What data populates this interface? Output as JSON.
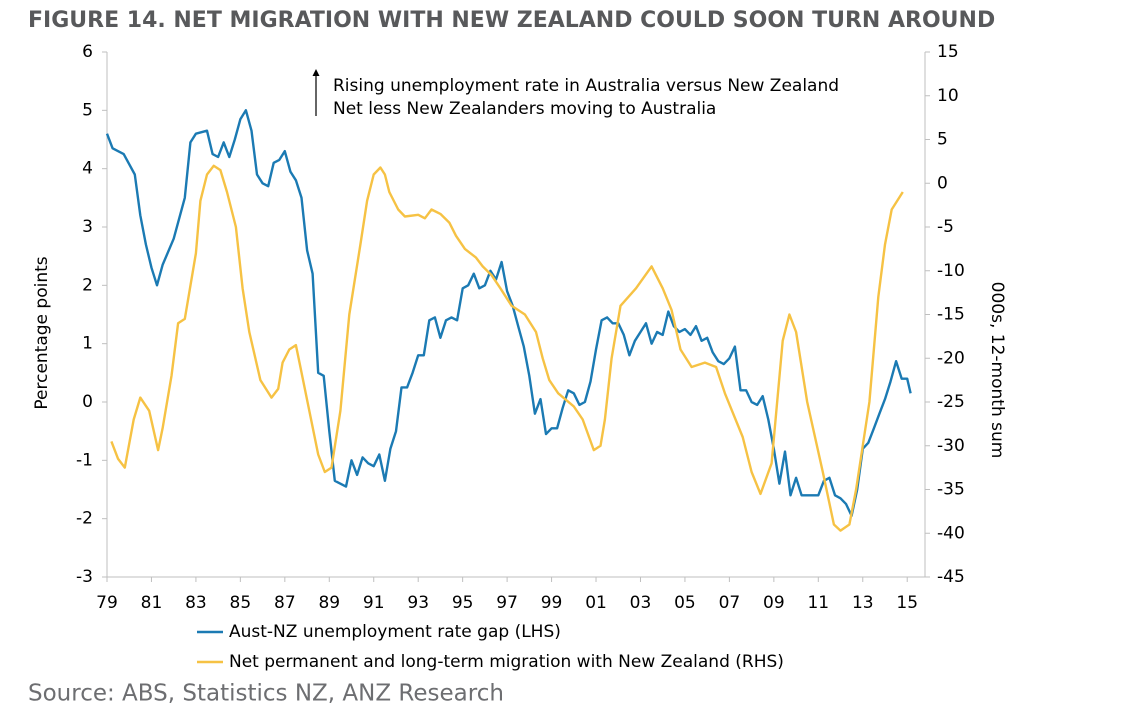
{
  "chart_data": {
    "type": "line",
    "title": "FIGURE 14. NET MIGRATION WITH NEW ZEALAND COULD SOON TURN AROUND",
    "ylabel": "Percentage points",
    "y2label": "000s, 12-month sum",
    "annotation": [
      "Rising unemployment rate in Australia versus New Zealand",
      "Net less New Zealanders moving to Australia"
    ],
    "source": "Source: ABS, Statistics NZ, ANZ Research",
    "xlim": [
      1979,
      2015.8
    ],
    "xticks": [
      {
        "value": 1979,
        "label": "79"
      },
      {
        "value": 1981,
        "label": "81"
      },
      {
        "value": 1983,
        "label": "83"
      },
      {
        "value": 1985,
        "label": "85"
      },
      {
        "value": 1987,
        "label": "87"
      },
      {
        "value": 1989,
        "label": "89"
      },
      {
        "value": 1991,
        "label": "91"
      },
      {
        "value": 1993,
        "label": "93"
      },
      {
        "value": 1995,
        "label": "95"
      },
      {
        "value": 1997,
        "label": "97"
      },
      {
        "value": 1999,
        "label": "99"
      },
      {
        "value": 2001,
        "label": "01"
      },
      {
        "value": 2003,
        "label": "03"
      },
      {
        "value": 2005,
        "label": "05"
      },
      {
        "value": 2007,
        "label": "07"
      },
      {
        "value": 2009,
        "label": "09"
      },
      {
        "value": 2011,
        "label": "11"
      },
      {
        "value": 2013,
        "label": "13"
      },
      {
        "value": 2015,
        "label": "15"
      }
    ],
    "ylim": [
      -3,
      6
    ],
    "yticks": [
      -3,
      -2,
      -1,
      0,
      1,
      2,
      3,
      4,
      5,
      6
    ],
    "y2lim": [
      -45,
      15
    ],
    "y2ticks": [
      -45,
      -40,
      -35,
      -30,
      -25,
      -20,
      -15,
      -10,
      -5,
      0,
      5,
      10,
      15
    ],
    "series": [
      {
        "name": "Aust-NZ unemployment rate gap (LHS)",
        "color": "#1b7ab3",
        "x": [
          1979.0,
          1979.25,
          1979.75,
          1980.25,
          1980.5,
          1980.75,
          1981.0,
          1981.25,
          1981.5,
          1982.0,
          1982.5,
          1982.75,
          1983.0,
          1983.5,
          1983.75,
          1984.0,
          1984.25,
          1984.5,
          1984.75,
          1985.0,
          1985.25,
          1985.5,
          1985.75,
          1986.0,
          1986.25,
          1986.5,
          1986.75,
          1987.0,
          1987.25,
          1987.5,
          1987.75,
          1988.0,
          1988.25,
          1988.5,
          1988.75,
          1989.0,
          1989.25,
          1989.75,
          1990.0,
          1990.25,
          1990.5,
          1990.75,
          1991.0,
          1991.25,
          1991.5,
          1991.75,
          1992.0,
          1992.25,
          1992.5,
          1992.75,
          1993.0,
          1993.25,
          1993.5,
          1993.75,
          1994.0,
          1994.25,
          1994.5,
          1994.75,
          1995.0,
          1995.25,
          1995.5,
          1995.75,
          1996.0,
          1996.25,
          1996.5,
          1996.75,
          1997.0,
          1997.25,
          1997.5,
          1997.75,
          1998.0,
          1998.25,
          1998.5,
          1998.75,
          1999.0,
          1999.25,
          1999.5,
          1999.75,
          2000.0,
          2000.25,
          2000.5,
          2000.75,
          2001.0,
          2001.25,
          2001.5,
          2001.75,
          2002.0,
          2002.25,
          2002.5,
          2002.75,
          2003.0,
          2003.25,
          2003.5,
          2003.75,
          2004.0,
          2004.25,
          2004.5,
          2004.75,
          2005.0,
          2005.25,
          2005.5,
          2005.75,
          2006.0,
          2006.25,
          2006.5,
          2006.75,
          2007.0,
          2007.25,
          2007.5,
          2007.75,
          2008.0,
          2008.25,
          2008.5,
          2008.75,
          2009.0,
          2009.25,
          2009.5,
          2009.75,
          2010.0,
          2010.25,
          2010.75,
          2011.0,
          2011.25,
          2011.5,
          2011.75,
          2012.0,
          2012.25,
          2012.5,
          2012.75,
          2013.0,
          2013.25,
          2013.5,
          2013.75,
          2014.0,
          2014.25,
          2014.5,
          2014.75,
          2015.0,
          2015.15
        ],
        "values": [
          4.6,
          4.35,
          4.25,
          3.9,
          3.2,
          2.7,
          2.3,
          2.0,
          2.35,
          2.8,
          3.5,
          4.45,
          4.6,
          4.65,
          4.25,
          4.2,
          4.45,
          4.2,
          4.5,
          4.85,
          5.0,
          4.65,
          3.9,
          3.75,
          3.7,
          4.1,
          4.15,
          4.3,
          3.95,
          3.8,
          3.5,
          2.6,
          2.2,
          0.5,
          0.45,
          -0.5,
          -1.35,
          -1.45,
          -1.0,
          -1.25,
          -0.95,
          -1.05,
          -1.1,
          -0.9,
          -1.35,
          -0.8,
          -0.5,
          0.25,
          0.25,
          0.5,
          0.8,
          0.8,
          1.4,
          1.45,
          1.1,
          1.4,
          1.45,
          1.4,
          1.95,
          2.0,
          2.2,
          1.95,
          2.0,
          2.25,
          2.1,
          2.4,
          1.9,
          1.65,
          1.3,
          0.95,
          0.45,
          -0.2,
          0.05,
          -0.55,
          -0.45,
          -0.45,
          -0.1,
          0.2,
          0.15,
          -0.05,
          0.0,
          0.35,
          0.9,
          1.4,
          1.45,
          1.35,
          1.35,
          1.15,
          0.8,
          1.05,
          1.2,
          1.35,
          1.0,
          1.2,
          1.15,
          1.55,
          1.3,
          1.2,
          1.25,
          1.15,
          1.3,
          1.05,
          1.1,
          0.85,
          0.7,
          0.65,
          0.75,
          0.95,
          0.2,
          0.2,
          0.0,
          -0.05,
          0.1,
          -0.3,
          -0.8,
          -1.4,
          -0.85,
          -1.6,
          -1.3,
          -1.6,
          -1.6,
          -1.6,
          -1.35,
          -1.3,
          -1.6,
          -1.65,
          -1.75,
          -1.95,
          -1.5,
          -0.8,
          -0.7,
          -0.45,
          -0.2,
          0.05,
          0.35,
          0.7,
          0.4,
          0.4,
          0.15
        ]
      },
      {
        "name": "Net permanent and long-term migration with New Zealand (RHS)",
        "color": "#f6c244",
        "axis": "y2",
        "x": [
          1979.2,
          1979.5,
          1979.8,
          1980.2,
          1980.5,
          1980.9,
          1981.3,
          1981.5,
          1981.9,
          1982.2,
          1982.5,
          1983.0,
          1983.2,
          1983.5,
          1983.8,
          1984.1,
          1984.4,
          1984.8,
          1985.1,
          1985.4,
          1985.9,
          1986.4,
          1986.7,
          1986.9,
          1987.2,
          1987.5,
          1987.7,
          1988.1,
          1988.5,
          1988.8,
          1989.1,
          1989.5,
          1989.9,
          1990.4,
          1990.7,
          1991.0,
          1991.3,
          1991.5,
          1991.7,
          1992.1,
          1992.4,
          1993.0,
          1993.3,
          1993.6,
          1994.0,
          1994.4,
          1994.7,
          1995.1,
          1995.6,
          1995.9,
          1996.3,
          1996.7,
          1997.2,
          1997.8,
          1998.3,
          1998.6,
          1998.9,
          1999.3,
          2000.0,
          2000.4,
          2000.9,
          2001.2,
          2001.4,
          2001.7,
          2002.1,
          2002.8,
          2003.5,
          2004.0,
          2004.4,
          2004.8,
          2005.3,
          2005.9,
          2006.4,
          2006.8,
          2007.6,
          2008.0,
          2008.4,
          2008.9,
          2009.4,
          2009.7,
          2010.0,
          2010.5,
          2011.2,
          2011.7,
          2012.0,
          2012.4,
          2012.7,
          2013.3,
          2013.7,
          2014.0,
          2014.3,
          2014.8
        ],
        "values": [
          -29.5,
          -31.5,
          -32.5,
          -27,
          -24.5,
          -26,
          -30.5,
          -28,
          -22,
          -16,
          -15.5,
          -8,
          -2,
          1,
          2,
          1.5,
          -1,
          -5,
          -12,
          -17,
          -22.5,
          -24.5,
          -23.5,
          -20.5,
          -19,
          -18.5,
          -21,
          -26,
          -31,
          -33,
          -32.5,
          -26,
          -15,
          -7,
          -2,
          1,
          1.8,
          1,
          -1,
          -3,
          -3.8,
          -3.6,
          -4,
          -3,
          -3.5,
          -4.5,
          -6,
          -7.5,
          -8.5,
          -9.5,
          -10.5,
          -12,
          -14,
          -15,
          -17,
          -20,
          -22.5,
          -24,
          -25.5,
          -27,
          -30.5,
          -30,
          -27,
          -20,
          -14,
          -12,
          -9.5,
          -12,
          -14.5,
          -19,
          -21,
          -20.5,
          -21,
          -24,
          -29,
          -33,
          -35.5,
          -32,
          -18,
          -15,
          -17,
          -25,
          -33,
          -39,
          -39.7,
          -39,
          -35,
          -25,
          -13,
          -7,
          -3,
          -1
        ]
      }
    ]
  }
}
